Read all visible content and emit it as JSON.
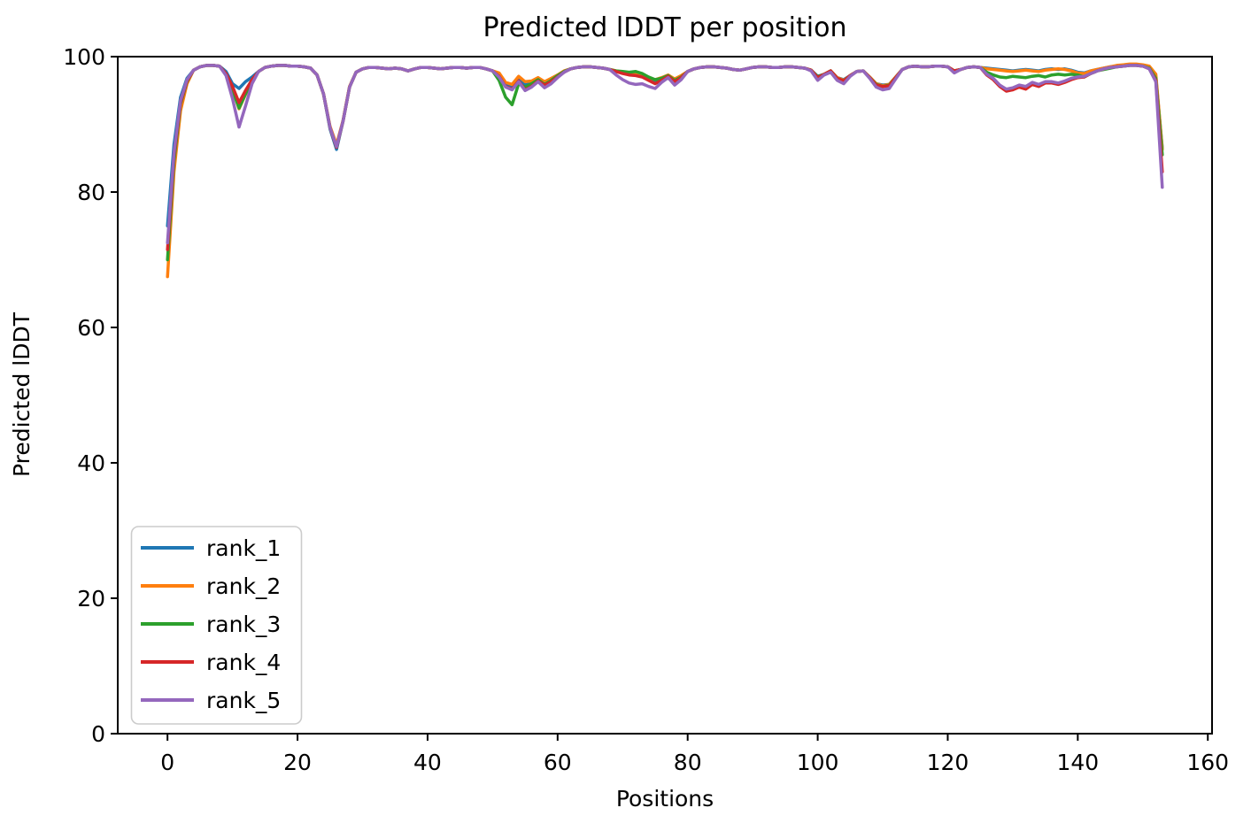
{
  "chart_data": {
    "type": "line",
    "title": "Predicted lDDT per position",
    "xlabel": "Positions",
    "ylabel": "Predicted lDDT",
    "xlim": [
      -7.65,
      160.65
    ],
    "ylim": [
      0,
      100
    ],
    "x_ticks": [
      0,
      20,
      40,
      60,
      80,
      100,
      120,
      140,
      160
    ],
    "y_ticks": [
      0,
      20,
      40,
      60,
      80,
      100
    ],
    "grid": false,
    "legend_position": "lower left",
    "x_start": 0,
    "x_step": 1,
    "series": [
      {
        "name": "rank_1",
        "color": "#1f77b4",
        "values": [
          75.0,
          87.0,
          94.0,
          96.8,
          98.0,
          98.5,
          98.7,
          98.7,
          98.6,
          97.8,
          96.0,
          95.3,
          96.3,
          97.0,
          97.8,
          98.4,
          98.6,
          98.7,
          98.7,
          98.6,
          98.6,
          98.5,
          98.3,
          97.3,
          94.5,
          89.3,
          86.3,
          90.5,
          95.5,
          97.7,
          98.2,
          98.4,
          98.4,
          98.3,
          98.2,
          98.3,
          98.2,
          97.9,
          98.2,
          98.4,
          98.4,
          98.3,
          98.2,
          98.3,
          98.4,
          98.4,
          98.3,
          98.4,
          98.4,
          98.2,
          97.9,
          97.3,
          95.8,
          95.4,
          96.6,
          95.8,
          96.1,
          96.7,
          96.1,
          96.6,
          97.2,
          97.8,
          98.2,
          98.4,
          98.5,
          98.5,
          98.4,
          98.3,
          98.1,
          97.8,
          97.6,
          97.4,
          97.3,
          97.2,
          96.8,
          96.5,
          96.8,
          97.2,
          96.6,
          97.1,
          97.8,
          98.2,
          98.4,
          98.5,
          98.5,
          98.4,
          98.3,
          98.1,
          98.0,
          98.2,
          98.4,
          98.5,
          98.5,
          98.4,
          98.4,
          98.5,
          98.5,
          98.4,
          98.3,
          98.0,
          97.1,
          97.4,
          97.9,
          96.9,
          96.6,
          97.2,
          97.8,
          97.9,
          97.0,
          96.0,
          95.8,
          95.9,
          97.0,
          98.1,
          98.5,
          98.6,
          98.5,
          98.5,
          98.6,
          98.6,
          98.5,
          97.9,
          98.1,
          98.4,
          98.5,
          98.4,
          98.3,
          98.2,
          98.1,
          98.0,
          97.9,
          98.0,
          98.1,
          98.0,
          97.9,
          98.1,
          98.2,
          98.1,
          98.2,
          98.0,
          97.7,
          97.6,
          97.9,
          98.1,
          98.3,
          98.5,
          98.6,
          98.7,
          98.8,
          98.8,
          98.7,
          98.4,
          97.0,
          86.5
        ]
      },
      {
        "name": "rank_2",
        "color": "#ff7f0e",
        "values": [
          67.5,
          83.0,
          92.0,
          96.0,
          98.0,
          98.5,
          98.7,
          98.7,
          98.6,
          97.4,
          95.2,
          92.3,
          94.4,
          96.4,
          97.8,
          98.4,
          98.6,
          98.7,
          98.7,
          98.6,
          98.6,
          98.5,
          98.3,
          97.3,
          94.5,
          89.7,
          87.0,
          90.6,
          95.6,
          97.7,
          98.2,
          98.4,
          98.4,
          98.3,
          98.2,
          98.3,
          98.2,
          97.9,
          98.2,
          98.4,
          98.4,
          98.3,
          98.2,
          98.3,
          98.4,
          98.4,
          98.3,
          98.4,
          98.4,
          98.2,
          97.9,
          97.6,
          96.2,
          95.9,
          97.1,
          96.3,
          96.4,
          96.9,
          96.3,
          96.8,
          97.3,
          97.9,
          98.2,
          98.4,
          98.5,
          98.5,
          98.4,
          98.3,
          98.1,
          97.9,
          97.7,
          97.5,
          97.4,
          97.3,
          96.9,
          96.6,
          96.9,
          97.3,
          96.7,
          97.2,
          97.8,
          98.2,
          98.4,
          98.5,
          98.5,
          98.4,
          98.3,
          98.1,
          98.0,
          98.2,
          98.4,
          98.5,
          98.5,
          98.4,
          98.4,
          98.5,
          98.5,
          98.4,
          98.3,
          98.0,
          97.0,
          97.4,
          97.9,
          96.9,
          96.5,
          97.2,
          97.8,
          97.9,
          97.0,
          96.0,
          95.7,
          95.9,
          97.0,
          98.1,
          98.5,
          98.6,
          98.5,
          98.5,
          98.6,
          98.6,
          98.5,
          97.9,
          98.1,
          98.4,
          98.5,
          98.4,
          98.2,
          98.1,
          98.0,
          97.9,
          97.8,
          97.9,
          98.0,
          97.9,
          97.8,
          98.0,
          98.1,
          98.2,
          98.1,
          97.9,
          97.6,
          97.5,
          97.9,
          98.1,
          98.3,
          98.5,
          98.7,
          98.8,
          98.9,
          98.9,
          98.8,
          98.6,
          97.4,
          86.3
        ]
      },
      {
        "name": "rank_3",
        "color": "#2ca02c",
        "values": [
          70.0,
          84.5,
          93.0,
          96.3,
          98.0,
          98.5,
          98.7,
          98.7,
          98.6,
          97.4,
          95.1,
          92.4,
          94.5,
          96.4,
          97.8,
          98.4,
          98.6,
          98.7,
          98.7,
          98.6,
          98.6,
          98.5,
          98.3,
          97.3,
          94.5,
          89.5,
          86.6,
          90.5,
          95.5,
          97.7,
          98.2,
          98.4,
          98.4,
          98.3,
          98.2,
          98.3,
          98.2,
          97.9,
          98.2,
          98.4,
          98.4,
          98.3,
          98.2,
          98.3,
          98.4,
          98.4,
          98.3,
          98.4,
          98.4,
          98.2,
          97.9,
          96.5,
          94.0,
          92.9,
          96.0,
          95.5,
          96.0,
          96.6,
          95.9,
          96.5,
          97.2,
          97.8,
          98.2,
          98.4,
          98.5,
          98.5,
          98.4,
          98.3,
          98.1,
          97.9,
          97.8,
          97.7,
          97.8,
          97.5,
          97.0,
          96.6,
          96.8,
          97.2,
          96.5,
          97.0,
          97.8,
          98.2,
          98.4,
          98.5,
          98.5,
          98.4,
          98.3,
          98.1,
          98.0,
          98.2,
          98.4,
          98.5,
          98.5,
          98.4,
          98.4,
          98.5,
          98.5,
          98.4,
          98.3,
          98.0,
          97.0,
          97.4,
          97.9,
          96.8,
          96.4,
          97.2,
          97.8,
          97.9,
          96.9,
          95.9,
          95.6,
          95.8,
          96.9,
          98.1,
          98.5,
          98.6,
          98.5,
          98.5,
          98.6,
          98.6,
          98.5,
          97.9,
          98.1,
          98.4,
          98.5,
          98.4,
          97.7,
          97.3,
          97.0,
          96.9,
          97.1,
          97.0,
          96.9,
          97.1,
          97.2,
          97.0,
          97.3,
          97.4,
          97.3,
          97.4,
          97.3,
          97.0,
          97.5,
          97.9,
          98.1,
          98.3,
          98.5,
          98.6,
          98.7,
          98.7,
          98.6,
          98.3,
          96.8,
          85.5
        ]
      },
      {
        "name": "rank_4",
        "color": "#d62728",
        "values": [
          71.5,
          85.3,
          93.2,
          96.4,
          98.0,
          98.5,
          98.7,
          98.7,
          98.6,
          97.5,
          95.6,
          93.2,
          95.0,
          96.6,
          97.8,
          98.4,
          98.6,
          98.7,
          98.7,
          98.6,
          98.6,
          98.5,
          98.3,
          97.3,
          94.5,
          89.5,
          86.6,
          90.5,
          95.5,
          97.7,
          98.2,
          98.4,
          98.4,
          98.3,
          98.2,
          98.3,
          98.2,
          97.9,
          98.2,
          98.4,
          98.4,
          98.3,
          98.2,
          98.3,
          98.4,
          98.4,
          98.3,
          98.4,
          98.4,
          98.2,
          97.9,
          97.1,
          95.6,
          95.2,
          96.4,
          95.1,
          95.6,
          96.4,
          95.8,
          96.3,
          97.0,
          97.7,
          98.2,
          98.4,
          98.5,
          98.5,
          98.4,
          98.3,
          98.1,
          97.8,
          97.5,
          97.3,
          97.2,
          97.0,
          96.5,
          96.0,
          96.5,
          97.1,
          96.3,
          96.9,
          97.8,
          98.2,
          98.4,
          98.5,
          98.5,
          98.4,
          98.3,
          98.1,
          98.0,
          98.2,
          98.4,
          98.5,
          98.5,
          98.4,
          98.4,
          98.5,
          98.5,
          98.4,
          98.3,
          98.0,
          96.9,
          97.4,
          97.9,
          96.8,
          96.4,
          97.2,
          97.8,
          97.9,
          96.9,
          95.8,
          95.6,
          95.7,
          96.9,
          98.1,
          98.5,
          98.6,
          98.5,
          98.5,
          98.6,
          98.6,
          98.5,
          97.9,
          98.1,
          98.4,
          98.5,
          98.4,
          97.3,
          96.6,
          95.6,
          94.9,
          95.1,
          95.5,
          95.2,
          95.9,
          95.6,
          96.1,
          96.1,
          95.9,
          96.2,
          96.6,
          96.9,
          97.0,
          97.5,
          97.9,
          98.2,
          98.4,
          98.5,
          98.6,
          98.7,
          98.7,
          98.6,
          98.2,
          96.5,
          83.0
        ]
      },
      {
        "name": "rank_5",
        "color": "#9467bd",
        "values": [
          72.5,
          85.8,
          93.5,
          96.6,
          98.0,
          98.5,
          98.7,
          98.7,
          98.6,
          97.2,
          93.8,
          89.6,
          92.7,
          96.0,
          97.8,
          98.4,
          98.6,
          98.7,
          98.7,
          98.6,
          98.6,
          98.5,
          98.3,
          97.3,
          94.5,
          89.5,
          86.7,
          90.5,
          95.5,
          97.7,
          98.2,
          98.4,
          98.4,
          98.3,
          98.2,
          98.3,
          98.2,
          97.9,
          98.2,
          98.4,
          98.4,
          98.3,
          98.2,
          98.3,
          98.4,
          98.4,
          98.3,
          98.4,
          98.4,
          98.2,
          97.9,
          97.0,
          95.5,
          95.1,
          96.3,
          95.0,
          95.5,
          96.3,
          95.4,
          96.0,
          96.9,
          97.7,
          98.2,
          98.4,
          98.5,
          98.5,
          98.4,
          98.3,
          98.1,
          97.3,
          96.6,
          96.1,
          95.9,
          96.0,
          95.6,
          95.3,
          96.2,
          96.9,
          95.8,
          96.6,
          97.8,
          98.2,
          98.4,
          98.5,
          98.5,
          98.4,
          98.3,
          98.1,
          98.0,
          98.2,
          98.4,
          98.5,
          98.5,
          98.4,
          98.4,
          98.5,
          98.5,
          98.4,
          98.3,
          97.9,
          96.5,
          97.3,
          97.7,
          96.5,
          96.0,
          97.1,
          97.8,
          97.9,
          96.8,
          95.5,
          95.1,
          95.3,
          96.7,
          98.1,
          98.5,
          98.6,
          98.5,
          98.5,
          98.6,
          98.6,
          98.5,
          97.6,
          98.1,
          98.4,
          98.5,
          98.4,
          97.4,
          96.8,
          95.8,
          95.2,
          95.4,
          95.8,
          95.6,
          96.2,
          95.9,
          96.3,
          96.3,
          96.1,
          96.4,
          96.8,
          97.0,
          97.1,
          97.5,
          97.9,
          98.2,
          98.4,
          98.5,
          98.6,
          98.7,
          98.7,
          98.6,
          98.2,
          96.3,
          80.7
        ]
      }
    ],
    "colors": {
      "text": "#000000",
      "spine": "#000000",
      "legend_edge": "#cccccc",
      "background": "#ffffff"
    }
  }
}
